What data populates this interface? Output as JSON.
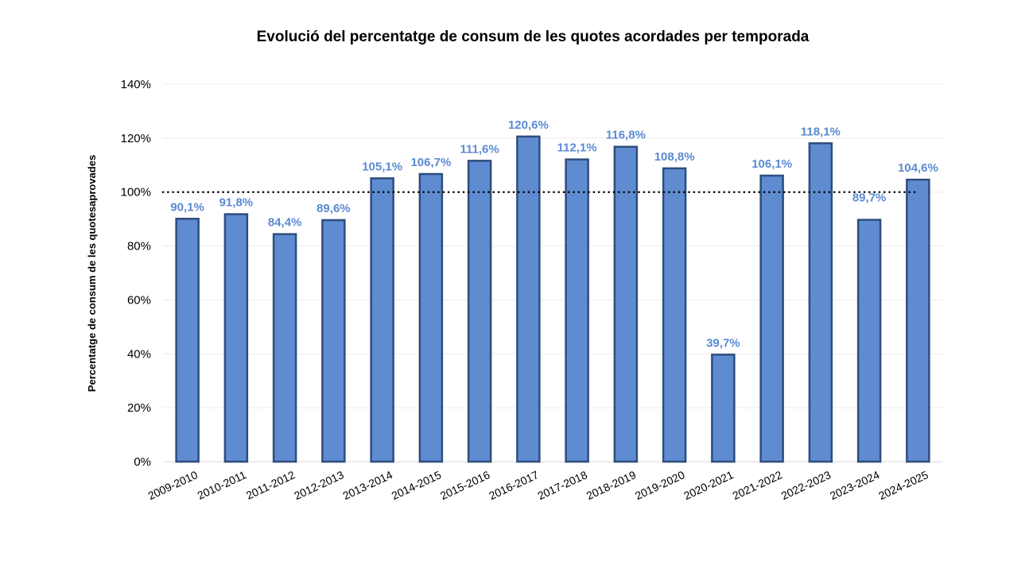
{
  "chart_data": {
    "type": "bar",
    "title": "Evolució del percentatge de consum de les quotes acordades per temporada",
    "xlabel": "",
    "ylabel": "Percentatge de consum de les quotesaprovades",
    "ylim": [
      0,
      140
    ],
    "yticks": [
      "0%",
      "20%",
      "40%",
      "60%",
      "80%",
      "100%",
      "120%",
      "140%"
    ],
    "grid": true,
    "reference_line": {
      "value": 100,
      "style": "dotted",
      "color": "#000000"
    },
    "bar_color": "#5f8bd0",
    "bar_edge_color": "#2f4d7e",
    "label_color": "#5b8ad3",
    "categories": [
      "2009-2010",
      "2010-2011",
      "2011-2012",
      "2012-2013",
      "2013-2014",
      "2014-2015",
      "2015-2016",
      "2016-2017",
      "2017-2018",
      "2018-2019",
      "2019-2020",
      "2020-2021",
      "2021-2022",
      "2022-2023",
      "2023-2024",
      "2024-2025"
    ],
    "values": [
      90.1,
      91.8,
      84.4,
      89.6,
      105.1,
      106.7,
      111.6,
      120.6,
      112.1,
      116.8,
      108.8,
      39.7,
      106.1,
      118.1,
      89.7,
      104.6
    ],
    "data_labels": [
      "90,1%",
      "91,8%",
      "84,4%",
      "89,6%",
      "105,1%",
      "106,7%",
      "111,6%",
      "120,6%",
      "112,1%",
      "116,8%",
      "108,8%",
      "39,7%",
      "106,1%",
      "118,1%",
      "89,7%",
      "104,6%"
    ]
  }
}
